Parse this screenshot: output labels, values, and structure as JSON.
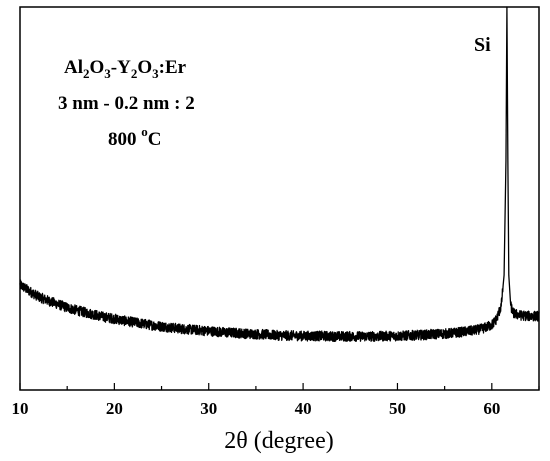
{
  "chart_data": {
    "type": "line",
    "title": "",
    "xlabel": "2θ (degree)",
    "ylabel": "",
    "xlim": [
      10,
      65
    ],
    "ylim": [
      0,
      100
    ],
    "x_ticks": [
      10,
      20,
      30,
      40,
      50,
      60
    ],
    "x_tick_labels": [
      "10",
      "20",
      "30",
      "40",
      "50",
      "60"
    ],
    "y_ticks_shown": false,
    "grid": false,
    "legend": "none",
    "series": [
      {
        "color": "#000000",
        "x": [
          10,
          11,
          12,
          13,
          14,
          15,
          16,
          17,
          18,
          19,
          20,
          21,
          22,
          23,
          24,
          25,
          26,
          27,
          28,
          29,
          30,
          31,
          32,
          33,
          34,
          35,
          36,
          37,
          38,
          39,
          40,
          41,
          42,
          43,
          44,
          45,
          46,
          47,
          48,
          49,
          50,
          51,
          52,
          53,
          54,
          55,
          56,
          57,
          58,
          59,
          60,
          60.5,
          61,
          61.3,
          61.5,
          61.6,
          61.7,
          61.8,
          62,
          62.3,
          63,
          64,
          65
        ],
        "y": [
          27.5,
          25.8,
          24.3,
          23.3,
          22.4,
          21.5,
          20.8,
          20.2,
          19.6,
          19.0,
          18.6,
          18.1,
          17.7,
          17.3,
          16.9,
          16.6,
          16.3,
          16.0,
          15.8,
          15.6,
          15.4,
          15.2,
          15.0,
          14.9,
          14.7,
          14.6,
          14.5,
          14.3,
          14.2,
          14.2,
          14.1,
          14.1,
          14.1,
          14.0,
          14.0,
          14.0,
          14.0,
          14.0,
          14.0,
          14.1,
          14.1,
          14.2,
          14.3,
          14.4,
          14.6,
          14.7,
          14.9,
          15.2,
          15.5,
          16.0,
          17.0,
          18.5,
          22.0,
          30.0,
          60.0,
          100.0,
          60.0,
          30.0,
          22.0,
          20.0,
          19.5,
          19.3,
          19.3
        ]
      }
    ],
    "annotations": {
      "line1_parts": [
        "Al",
        "2",
        "O",
        "3",
        "-Y",
        "2",
        "O",
        "3",
        ":Er"
      ],
      "line2": "3 nm - 0.2 nm : 2",
      "line3_value": "800 ",
      "line3_degree": "o",
      "line3_unit": "C",
      "peak_label": "Si"
    }
  }
}
